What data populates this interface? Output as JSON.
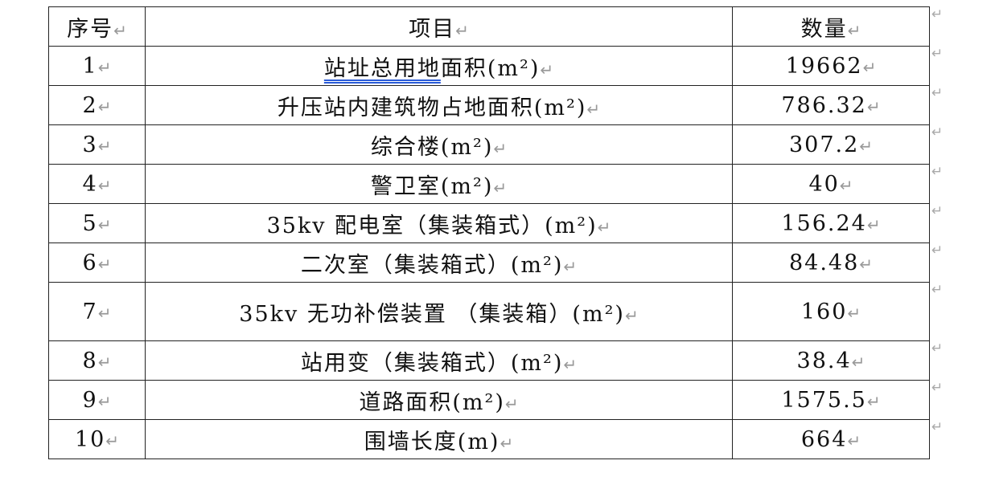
{
  "table": {
    "headers": [
      "序号",
      "项目",
      "数量"
    ],
    "rows": [
      {
        "no": "1",
        "item_underlined": "站址总用地",
        "item_rest": "面积(m²)",
        "qty": "19662"
      },
      {
        "no": "2",
        "item_underlined": "",
        "item_rest": "升压站内建筑物占地面积(m²)",
        "qty": "786.32"
      },
      {
        "no": "3",
        "item_underlined": "",
        "item_rest": "综合楼(m²)",
        "qty": "307.2"
      },
      {
        "no": "4",
        "item_underlined": "",
        "item_rest": "警卫室(m²)",
        "qty": "40"
      },
      {
        "no": "5",
        "item_underlined": "",
        "item_rest": "35kv 配电室（集装箱式）(m²)",
        "qty": "156.24"
      },
      {
        "no": "6",
        "item_underlined": "",
        "item_rest": "二次室（集装箱式）(m²)",
        "qty": "84.48"
      },
      {
        "no": "7",
        "item_underlined": "",
        "item_rest": "35kv 无功补偿装置 （集装箱）(m²)",
        "qty": "160"
      },
      {
        "no": "8",
        "item_underlined": "",
        "item_rest": "站用变（集装箱式）(m²)",
        "qty": "38.4"
      },
      {
        "no": "9",
        "item_underlined": "",
        "item_rest": "道路面积(m²)",
        "qty": "1575.5"
      },
      {
        "no": "10",
        "item_underlined": "",
        "item_rest": "围墙长度(m)",
        "qty": "664"
      }
    ]
  },
  "return_mark": "↵"
}
